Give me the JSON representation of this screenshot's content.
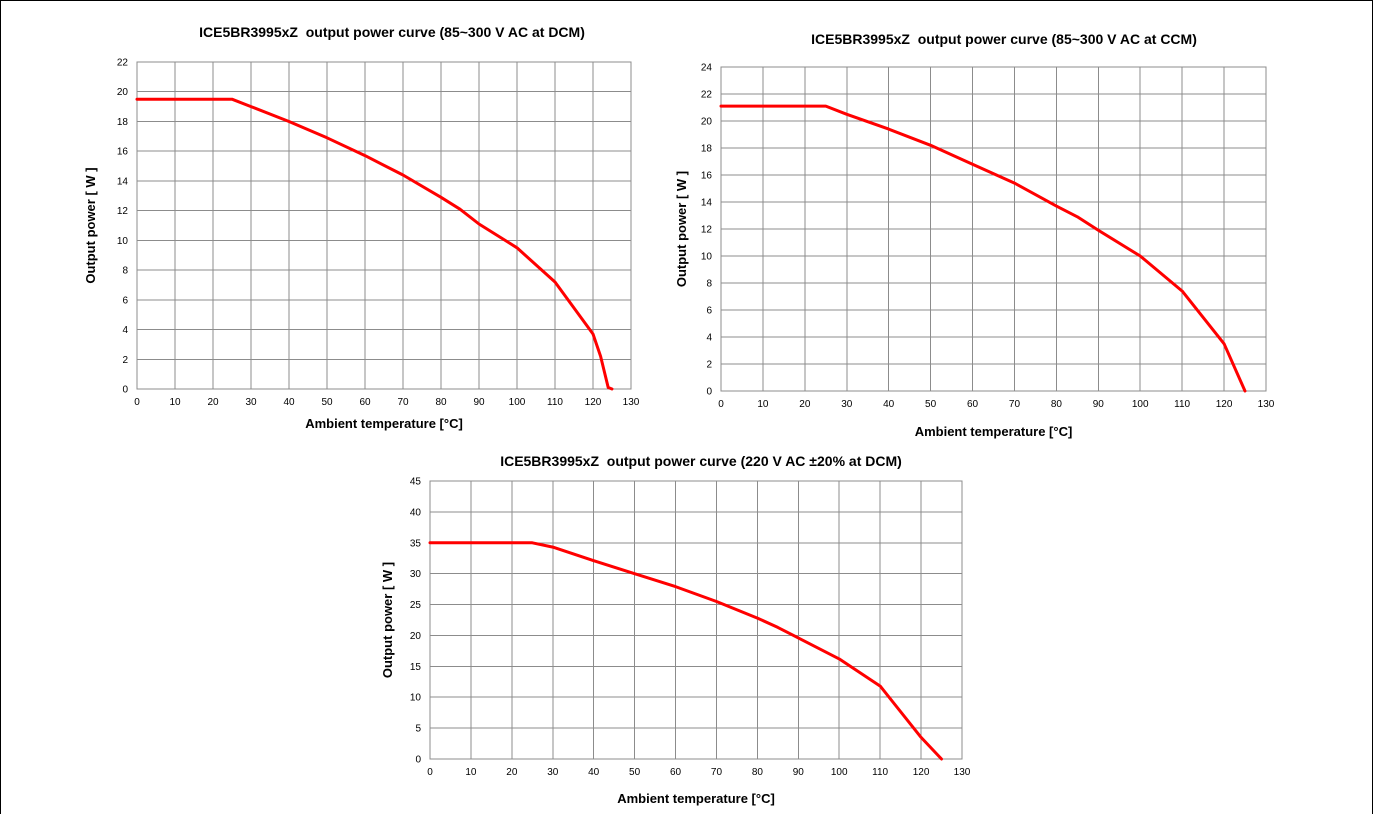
{
  "colors": {
    "series": "#ff0000",
    "grid": "#8c8c8c",
    "text": "#000000"
  },
  "chart_data": [
    {
      "type": "line",
      "title": "ICE5BR3995xZ  output power curve (85~300 V AC at DCM)",
      "xlabel": "Ambient temperature [°C]",
      "ylabel": "Output power [ W ]",
      "xlim": [
        0,
        130
      ],
      "ylim": [
        0,
        22
      ],
      "xticks": [
        0,
        10,
        20,
        30,
        40,
        50,
        60,
        70,
        80,
        90,
        100,
        110,
        120,
        130
      ],
      "yticks": [
        0,
        2,
        4,
        6,
        8,
        10,
        12,
        14,
        16,
        18,
        20,
        22
      ],
      "grid": true,
      "series": [
        {
          "x": [
            0,
            25,
            30,
            40,
            50,
            60,
            70,
            80,
            85,
            90,
            100,
            110,
            120,
            122,
            124,
            125
          ],
          "y": [
            19.5,
            19.5,
            19.0,
            18.0,
            16.9,
            15.7,
            14.4,
            12.9,
            12.1,
            11.1,
            9.5,
            7.2,
            3.7,
            2.2,
            0.1,
            0
          ]
        }
      ]
    },
    {
      "type": "line",
      "title": "ICE5BR3995xZ  output power curve (85~300 V AC at CCM)",
      "xlabel": "Ambient temperature [°C]",
      "ylabel": "Output power [ W ]",
      "xlim": [
        0,
        130
      ],
      "ylim": [
        0,
        24
      ],
      "xticks": [
        0,
        10,
        20,
        30,
        40,
        50,
        60,
        70,
        80,
        90,
        100,
        110,
        120,
        130
      ],
      "yticks": [
        0,
        2,
        4,
        6,
        8,
        10,
        12,
        14,
        16,
        18,
        20,
        22,
        24
      ],
      "grid": true,
      "series": [
        {
          "x": [
            0,
            25,
            30,
            40,
            50,
            60,
            70,
            80,
            85,
            90,
            100,
            110,
            120,
            125
          ],
          "y": [
            21.1,
            21.1,
            20.5,
            19.4,
            18.2,
            16.8,
            15.4,
            13.7,
            12.9,
            11.9,
            10.0,
            7.4,
            3.5,
            0
          ]
        }
      ]
    },
    {
      "type": "line",
      "title": "ICE5BR3995xZ  output power curve (220 V AC ±20% at DCM)",
      "xlabel": "Ambient temperature [°C]",
      "ylabel": "Output power [ W ]",
      "xlim": [
        0,
        130
      ],
      "ylim": [
        0,
        45
      ],
      "xticks": [
        0,
        10,
        20,
        30,
        40,
        50,
        60,
        70,
        80,
        90,
        100,
        110,
        120,
        130
      ],
      "yticks": [
        0,
        5,
        10,
        15,
        20,
        25,
        30,
        35,
        40,
        45
      ],
      "grid": true,
      "series": [
        {
          "x": [
            0,
            25,
            30,
            40,
            50,
            60,
            70,
            80,
            85,
            90,
            100,
            110,
            120,
            125
          ],
          "y": [
            35,
            35,
            34.3,
            32.1,
            30.0,
            27.9,
            25.5,
            22.8,
            21.3,
            19.6,
            16.2,
            11.8,
            3.5,
            0
          ]
        }
      ]
    }
  ]
}
